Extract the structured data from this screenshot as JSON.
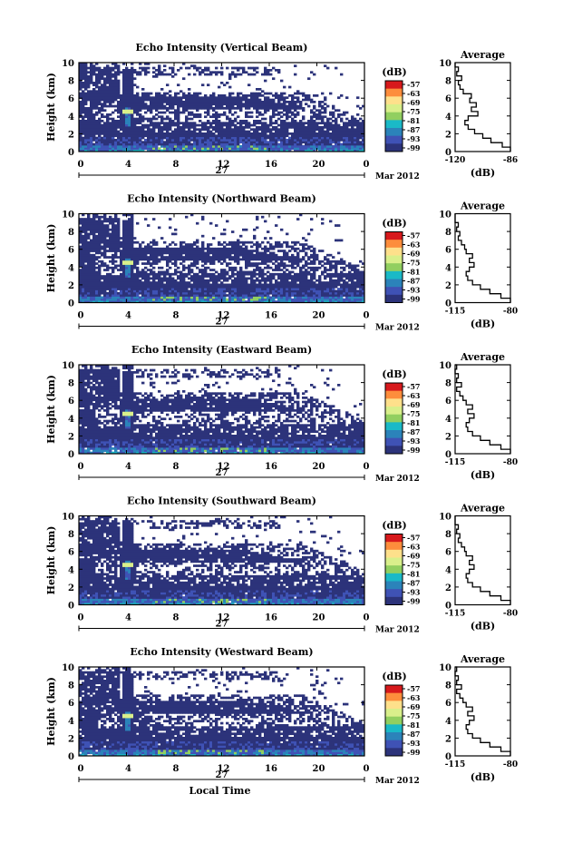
{
  "chart_data": {
    "type": "heatmap",
    "x_axis": {
      "ticks": [
        "0",
        "4",
        "8",
        "12",
        "16",
        "20",
        "0"
      ],
      "day_label": "27",
      "month_label": "Mar 2012",
      "xlabel": "Local Time"
    },
    "y_axis": {
      "ylabel": "Height (km)",
      "ticks": [
        "0",
        "2",
        "4",
        "6",
        "8",
        "10"
      ],
      "ylim": [
        0,
        10
      ]
    },
    "colorbar": {
      "unit": "(dB)",
      "ticks": [
        "-57",
        "-63",
        "-69",
        "-75",
        "-81",
        "-87",
        "-93",
        "-99"
      ],
      "colors": [
        "#d7191c",
        "#fd8d3c",
        "#fee08b",
        "#d9ef8b",
        "#91cf60",
        "#1ab9c7",
        "#2b83ba",
        "#3f52b5",
        "#2c337a"
      ]
    },
    "panels": [
      {
        "title": "Echo Intensity (Vertical Beam)",
        "profile": {
          "title": "Average",
          "unit": "(dB)",
          "xticks": [
            "-120",
            "-86"
          ],
          "yticks": [
            "0",
            "2",
            "4",
            "6",
            "8",
            "10"
          ],
          "heights": [
            0,
            0.5,
            1,
            1.5,
            2,
            2.5,
            3,
            3.5,
            4,
            4.5,
            5,
            5.5,
            6,
            6.5,
            7,
            7.5,
            8,
            8.5,
            9,
            9.5,
            10
          ],
          "db": [
            -86,
            -91,
            -98,
            -103,
            -108,
            -112,
            -114,
            -112,
            -106,
            -110,
            -107,
            -111,
            -110,
            -115,
            -117,
            -118,
            -116,
            -119,
            -118,
            -120,
            -120
          ]
        }
      },
      {
        "title": "Echo Intensity (Northward Beam)",
        "profile": {
          "title": "Average",
          "unit": "(dB)",
          "xticks": [
            "-115",
            "-80"
          ],
          "yticks": [
            "0",
            "2",
            "4",
            "6",
            "8",
            "10"
          ],
          "heights": [
            0,
            0.5,
            1,
            1.5,
            2,
            2.5,
            3,
            3.5,
            4,
            4.5,
            5,
            5.5,
            6,
            6.5,
            7,
            7.5,
            8,
            8.5,
            9,
            9.5,
            10
          ],
          "db": [
            -80,
            -86,
            -93,
            -99,
            -104,
            -107,
            -108,
            -106,
            -103,
            -106,
            -104,
            -108,
            -109,
            -111,
            -113,
            -112,
            -114,
            -113,
            -115,
            -115,
            -115
          ]
        }
      },
      {
        "title": "Echo Intensity (Eastward Beam)",
        "profile": {
          "title": "Average",
          "unit": "(dB)",
          "xticks": [
            "-115",
            "-80"
          ],
          "yticks": [
            "0",
            "2",
            "4",
            "6",
            "8",
            "10"
          ],
          "heights": [
            0,
            0.5,
            1,
            1.5,
            2,
            2.5,
            3,
            3.5,
            4,
            4.5,
            5,
            5.5,
            6,
            6.5,
            7,
            7.5,
            8,
            8.5,
            9,
            9.5,
            10
          ],
          "db": [
            -80,
            -86,
            -93,
            -99,
            -104,
            -107,
            -108,
            -106,
            -103,
            -107,
            -104,
            -108,
            -110,
            -112,
            -114,
            -111,
            -114,
            -113,
            -115,
            -114,
            -115
          ]
        }
      },
      {
        "title": "Echo Intensity (Southward Beam)",
        "profile": {
          "title": "Average",
          "unit": "(dB)",
          "xticks": [
            "-115",
            "-80"
          ],
          "yticks": [
            "0",
            "2",
            "4",
            "6",
            "8",
            "10"
          ],
          "heights": [
            0,
            0.5,
            1,
            1.5,
            2,
            2.5,
            3,
            3.5,
            4,
            4.5,
            5,
            5.5,
            6,
            6.5,
            7,
            7.5,
            8,
            8.5,
            9,
            9.5,
            10
          ],
          "db": [
            -80,
            -86,
            -93,
            -99,
            -104,
            -107,
            -108,
            -106,
            -103,
            -106,
            -104,
            -108,
            -109,
            -111,
            -113,
            -112,
            -114,
            -113,
            -115,
            -115,
            -115
          ]
        }
      },
      {
        "title": "Echo Intensity (Westward Beam)",
        "profile": {
          "title": "Average",
          "unit": "(dB)",
          "xticks": [
            "-115",
            "-80"
          ],
          "yticks": [
            "0",
            "2",
            "4",
            "6",
            "8",
            "10"
          ],
          "heights": [
            0,
            0.5,
            1,
            1.5,
            2,
            2.5,
            3,
            3.5,
            4,
            4.5,
            5,
            5.5,
            6,
            6.5,
            7,
            7.5,
            8,
            8.5,
            9,
            9.5,
            10
          ],
          "db": [
            -80,
            -86,
            -93,
            -99,
            -104,
            -107,
            -108,
            -106,
            -103,
            -107,
            -104,
            -108,
            -110,
            -112,
            -114,
            -111,
            -114,
            -113,
            -115,
            -114,
            -115
          ]
        }
      }
    ]
  }
}
